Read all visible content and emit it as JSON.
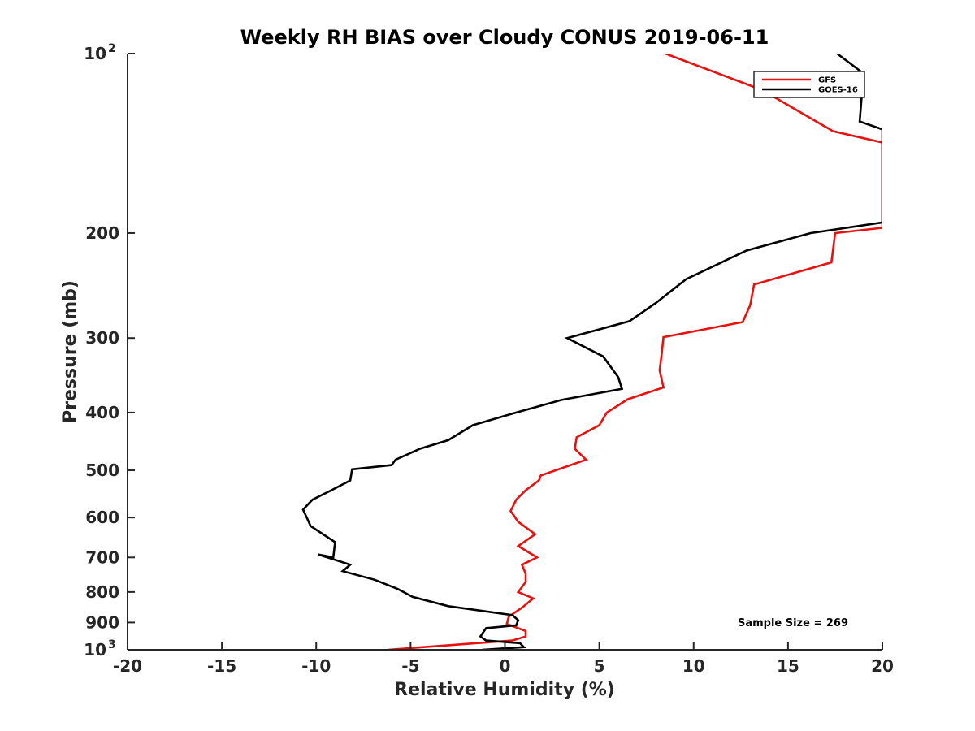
{
  "chart_data": {
    "type": "line",
    "title": "Weekly RH BIAS over Cloudy CONUS 2019-06-11",
    "xlabel": "Relative Humidity (%)",
    "ylabel": "Pressure (mb)",
    "xlim": [
      -20,
      20
    ],
    "ylim": [
      100,
      1000
    ],
    "y_scale": "log",
    "y_reversed": true,
    "grid": false,
    "legend_position": "top-right",
    "x_ticks": [
      "-20",
      "-15",
      "-10",
      "-5",
      "0",
      "5",
      "10",
      "15",
      "20"
    ],
    "x_tick_values": [
      -20,
      -15,
      -10,
      -5,
      0,
      5,
      10,
      15,
      20
    ],
    "y_ticks": [
      {
        "value": 100,
        "base": "10",
        "exp": "2"
      },
      {
        "value": 200,
        "base": "200",
        "exp": ""
      },
      {
        "value": 300,
        "base": "300",
        "exp": ""
      },
      {
        "value": 400,
        "base": "400",
        "exp": ""
      },
      {
        "value": 500,
        "base": "500",
        "exp": ""
      },
      {
        "value": 600,
        "base": "600",
        "exp": ""
      },
      {
        "value": 700,
        "base": "700",
        "exp": ""
      },
      {
        "value": 800,
        "base": "800",
        "exp": ""
      },
      {
        "value": 900,
        "base": "900",
        "exp": ""
      },
      {
        "value": 1000,
        "base": "10",
        "exp": "3"
      }
    ],
    "annotation": "Sample Size = 269",
    "series": [
      {
        "name": "GFS",
        "color": "#e8110f",
        "x": [
          8.5,
          13.6,
          17.4,
          20.0,
          20.0,
          17.5,
          17.3,
          13.2,
          13.0,
          12.6,
          8.4,
          8.3,
          8.2,
          8.4,
          6.5,
          5.4,
          5.0,
          3.8,
          3.7,
          4.3,
          1.9,
          1.8,
          1.1,
          0.6,
          0.3,
          0.7,
          1.6,
          0.7,
          1.7,
          0.9,
          1.1,
          1.1,
          0.7,
          1.5,
          0.9,
          0.2,
          0.1,
          1.1,
          1.1,
          0.4,
          -6.2
        ],
        "y": [
          100,
          115,
          135,
          141,
          196,
          200,
          224,
          244,
          264,
          282,
          299,
          320,
          340,
          363,
          380,
          400,
          420,
          440,
          460,
          480,
          510,
          520,
          540,
          560,
          585,
          610,
          640,
          670,
          700,
          720,
          745,
          770,
          800,
          820,
          850,
          880,
          905,
          930,
          950,
          965,
          1000
        ]
      },
      {
        "name": "GOES-16",
        "color": "#000000",
        "x": [
          17.6,
          19.0,
          18.8,
          20.0,
          20.0,
          16.2,
          12.8,
          9.6,
          8.0,
          6.6,
          3.3,
          5.2,
          6.0,
          6.2,
          3.0,
          0.6,
          -1.7,
          -3.0,
          -4.5,
          -5.8,
          -6.0,
          -8.1,
          -8.2,
          -9.2,
          -10.2,
          -10.7,
          -10.5,
          -10.3,
          -9.0,
          -9.1,
          -9.9,
          -8.2,
          -8.6,
          -6.9,
          -5.7,
          -4.9,
          -3.0,
          0.4,
          0.7,
          0.6,
          -1.0,
          -1.3,
          -1.0,
          0.8,
          1.0,
          -1.2
        ],
        "y": [
          100,
          108,
          130,
          134,
          192,
          200,
          214,
          239,
          262,
          281,
          300,
          322,
          349,
          365,
          381,
          400,
          420,
          445,
          460,
          480,
          490,
          498,
          520,
          540,
          560,
          582,
          600,
          620,
          660,
          700,
          692,
          720,
          738,
          763,
          790,
          815,
          845,
          875,
          892,
          910,
          920,
          950,
          965,
          975,
          990,
          1000
        ]
      }
    ]
  }
}
